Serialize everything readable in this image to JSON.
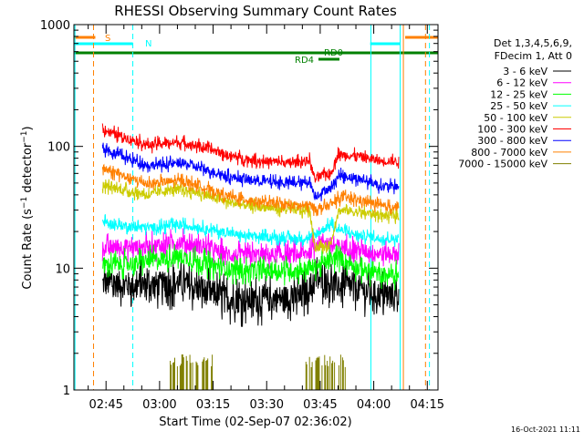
{
  "chart_data": {
    "type": "line",
    "title": "RHESSI Observing Summary Count Rates",
    "xlabel": "Start Time (02-Sep-07 02:36:02)",
    "ylabel": "Count Rate (s⁻¹ detector⁻¹)",
    "ylabel_parts": {
      "main": "Count Rate (s",
      "exp1": "−1",
      "mid": " detector",
      "exp2": "−1",
      "end": ")"
    },
    "y_scale": "log",
    "ylim": [
      1,
      1000
    ],
    "y_ticks": [
      {
        "value": 1,
        "label": "1"
      },
      {
        "value": 10,
        "label": "10"
      },
      {
        "value": 100,
        "label": "100"
      },
      {
        "value": 1000,
        "label": "1000"
      }
    ],
    "x_start": "02:36:02",
    "xlim_minutes": [
      0,
      102
    ],
    "x_ticks": [
      {
        "minute": 9,
        "label": "02:45"
      },
      {
        "minute": 24,
        "label": "03:00"
      },
      {
        "minute": 39,
        "label": "03:15"
      },
      {
        "minute": 54,
        "label": "03:30"
      },
      {
        "minute": 69,
        "label": "03:45"
      },
      {
        "minute": 84,
        "label": "04:00"
      },
      {
        "minute": 99,
        "label": "04:15"
      }
    ],
    "grid": false,
    "legend_placement": "right",
    "legend_header": [
      "Det 1,3,4,5,6,9,",
      "FDecim 1, Att 0"
    ],
    "series": [
      {
        "name": "3 - 6 keV",
        "color": "#000000",
        "x": [
          8,
          12,
          17,
          21,
          25,
          30,
          34,
          39,
          43,
          47,
          52,
          56,
          60,
          64,
          66,
          68,
          70,
          72,
          74,
          76,
          80,
          84,
          86
        ],
        "values": [
          7.5,
          7.4,
          7.2,
          7.4,
          7.3,
          7.6,
          6.8,
          6.2,
          5.6,
          5.4,
          5.5,
          5.6,
          5.7,
          5.8,
          6.8,
          8.0,
          8.0,
          7.6,
          7.2,
          7.2,
          6.8,
          6.2,
          6.0
        ]
      },
      {
        "name": "6 - 12 keV",
        "color": "#ff00ff",
        "x": [
          8,
          12,
          17,
          21,
          25,
          30,
          34,
          39,
          43,
          47,
          52,
          56,
          60,
          64,
          66,
          68,
          70,
          72,
          74,
          76,
          80,
          84,
          86
        ],
        "values": [
          14.5,
          15,
          14.8,
          15,
          15.5,
          16.5,
          15.5,
          14,
          13,
          12.5,
          12.8,
          12.8,
          12.8,
          13,
          13.5,
          16,
          17,
          15.5,
          15,
          15,
          14,
          13.5,
          13.2
        ]
      },
      {
        "name": "12 - 25 keV",
        "color": "#00ff00",
        "x": [
          8,
          12,
          17,
          21,
          25,
          30,
          34,
          39,
          43,
          47,
          52,
          56,
          60,
          64,
          66,
          68,
          70,
          72,
          74,
          76,
          80,
          84,
          86
        ],
        "values": [
          10.5,
          10.8,
          11,
          11.5,
          12,
          12.5,
          11.5,
          10.5,
          10,
          9.5,
          9.5,
          9.5,
          9.5,
          9.8,
          10,
          10.5,
          11,
          11.5,
          12.5,
          11.5,
          10,
          9.2,
          8.8
        ]
      },
      {
        "name": "25 - 50 keV",
        "color": "#00ffff",
        "x": [
          8,
          12,
          17,
          21,
          25,
          30,
          34,
          39,
          43,
          47,
          52,
          56,
          60,
          64,
          66,
          68,
          70,
          72,
          74,
          76,
          80,
          84,
          86
        ],
        "values": [
          24,
          22.5,
          22,
          21.5,
          22,
          22.5,
          22,
          20.5,
          19.5,
          18.5,
          18,
          18,
          17.5,
          17.5,
          18,
          19,
          21,
          23,
          21,
          20,
          18.5,
          18,
          17.5
        ]
      },
      {
        "name": "50 - 100 keV",
        "color": "#cccc00",
        "x": [
          8,
          12,
          17,
          21,
          25,
          30,
          34,
          39,
          43,
          47,
          52,
          56,
          60,
          64,
          66,
          67.5,
          69,
          70.5,
          72,
          74,
          76,
          80,
          84,
          86
        ],
        "values": [
          48,
          45,
          42,
          40,
          43,
          44,
          42,
          38,
          35,
          33,
          32,
          31,
          30.5,
          29.5,
          30,
          15,
          15,
          15,
          16,
          29.5,
          30,
          28.5,
          28,
          27
        ]
      },
      {
        "name": "100 - 300 keV",
        "color": "#ff0000",
        "x": [
          8,
          12,
          17,
          21,
          25,
          30,
          34,
          39,
          43,
          47,
          52,
          56,
          60,
          64,
          66,
          67.5,
          69,
          70.5,
          72,
          74,
          76,
          80,
          84,
          86
        ],
        "values": [
          138,
          125,
          112,
          102,
          106,
          108,
          102,
          93,
          85,
          80,
          76,
          75,
          73,
          75,
          77,
          54,
          56,
          60,
          60,
          86,
          85,
          83,
          78,
          76
        ]
      },
      {
        "name": "300 - 800 keV",
        "color": "#0000ff",
        "x": [
          8,
          12,
          17,
          21,
          25,
          30,
          34,
          39,
          43,
          47,
          52,
          56,
          60,
          64,
          66,
          67.5,
          69,
          70.5,
          72,
          74,
          76,
          80,
          84,
          86
        ],
        "values": [
          97,
          86,
          76,
          70,
          71,
          73,
          68,
          62,
          57,
          54,
          52,
          51,
          50,
          50,
          52,
          39,
          41,
          44,
          45,
          57,
          57,
          54,
          50,
          47
        ]
      },
      {
        "name": "800 - 7000 keV",
        "color": "#ff8000",
        "x": [
          8,
          12,
          17,
          21,
          25,
          30,
          34,
          39,
          43,
          47,
          52,
          56,
          60,
          64,
          66,
          67.5,
          69,
          70.5,
          72,
          74,
          76,
          80,
          84,
          86
        ],
        "values": [
          66,
          60,
          53,
          49,
          51,
          52,
          49,
          43,
          39,
          37,
          35,
          34,
          33,
          32.5,
          33,
          31,
          31,
          32,
          33,
          37,
          38,
          36,
          34,
          32
        ]
      },
      {
        "name": "7000 - 15000 keV",
        "color": "#808000",
        "x": [],
        "values": []
      }
    ],
    "annotations": [
      {
        "label": "S",
        "color": "#ff8000"
      },
      {
        "label": "N",
        "color": "#00ffff"
      },
      {
        "label": "RD0",
        "color": "#008000"
      },
      {
        "label": "RD4",
        "color": "#008000"
      }
    ],
    "event_bands": [
      {
        "color": "#ff8000",
        "x_min": [
          5.5,
          98.5
        ],
        "style": "solid-bar",
        "label": "S"
      },
      {
        "color": "#00ffff",
        "x_min": [
          [
            0,
            16.5
          ],
          [
            83,
            91.5
          ]
        ],
        "style": "bar",
        "label": "N"
      }
    ]
  },
  "footer_timestamp": "16-Oct-2021 11:11"
}
